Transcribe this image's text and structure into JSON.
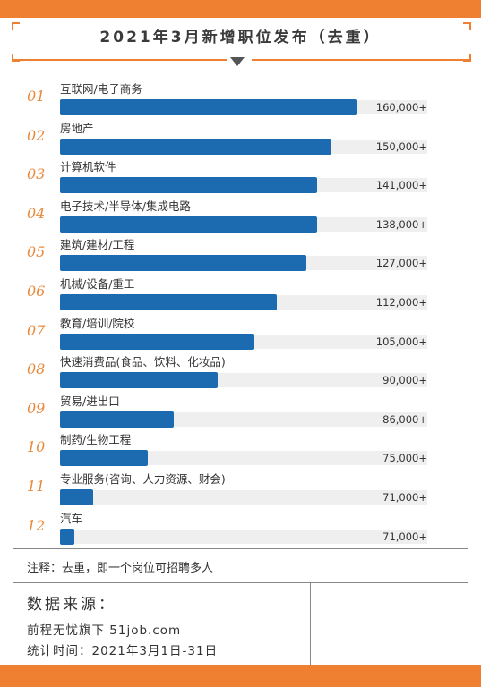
{
  "colors": {
    "accent": "#ef7f31",
    "bar": "#1c6bb0",
    "index": "#e88a3c"
  },
  "chart_data": {
    "type": "bar",
    "orientation": "horizontal",
    "title": "2021年3月新增职位发布（去重）",
    "indices": [
      "01",
      "02",
      "03",
      "04",
      "05",
      "06",
      "07",
      "08",
      "09",
      "10",
      "11",
      "12"
    ],
    "categories": [
      "互联网/电子商务",
      "房地产",
      "计算机软件",
      "电子技术/半导体/集成电路",
      "建筑/建材/工程",
      "机械/设备/重工",
      "教育/培训/院校",
      "快速消费品(食品、饮料、化妆品)",
      "贸易/进出口",
      "制药/生物工程",
      "专业服务(咨询、人力资源、财会)",
      "汽车"
    ],
    "values": [
      160000,
      150000,
      141000,
      138000,
      127000,
      112000,
      105000,
      90000,
      86000,
      75000,
      71000,
      71000
    ],
    "value_labels": [
      "160,000+",
      "150,000+",
      "141,000+",
      "138,000+",
      "127,000+",
      "112,000+",
      "105,000+",
      "90,000+",
      "86,000+",
      "75,000+",
      "71,000+",
      "71,000+"
    ],
    "bar_fill_fraction": [
      0.81,
      0.74,
      0.7,
      0.7,
      0.67,
      0.59,
      0.53,
      0.43,
      0.31,
      0.24,
      0.09,
      0.04
    ]
  },
  "note": "注释：去重，即一个岗位可招聘多人",
  "source": {
    "title": "数据来源：",
    "line1": "前程无忧旗下 51job.com",
    "line2": "统计时间：2021年3月1日-31日"
  }
}
